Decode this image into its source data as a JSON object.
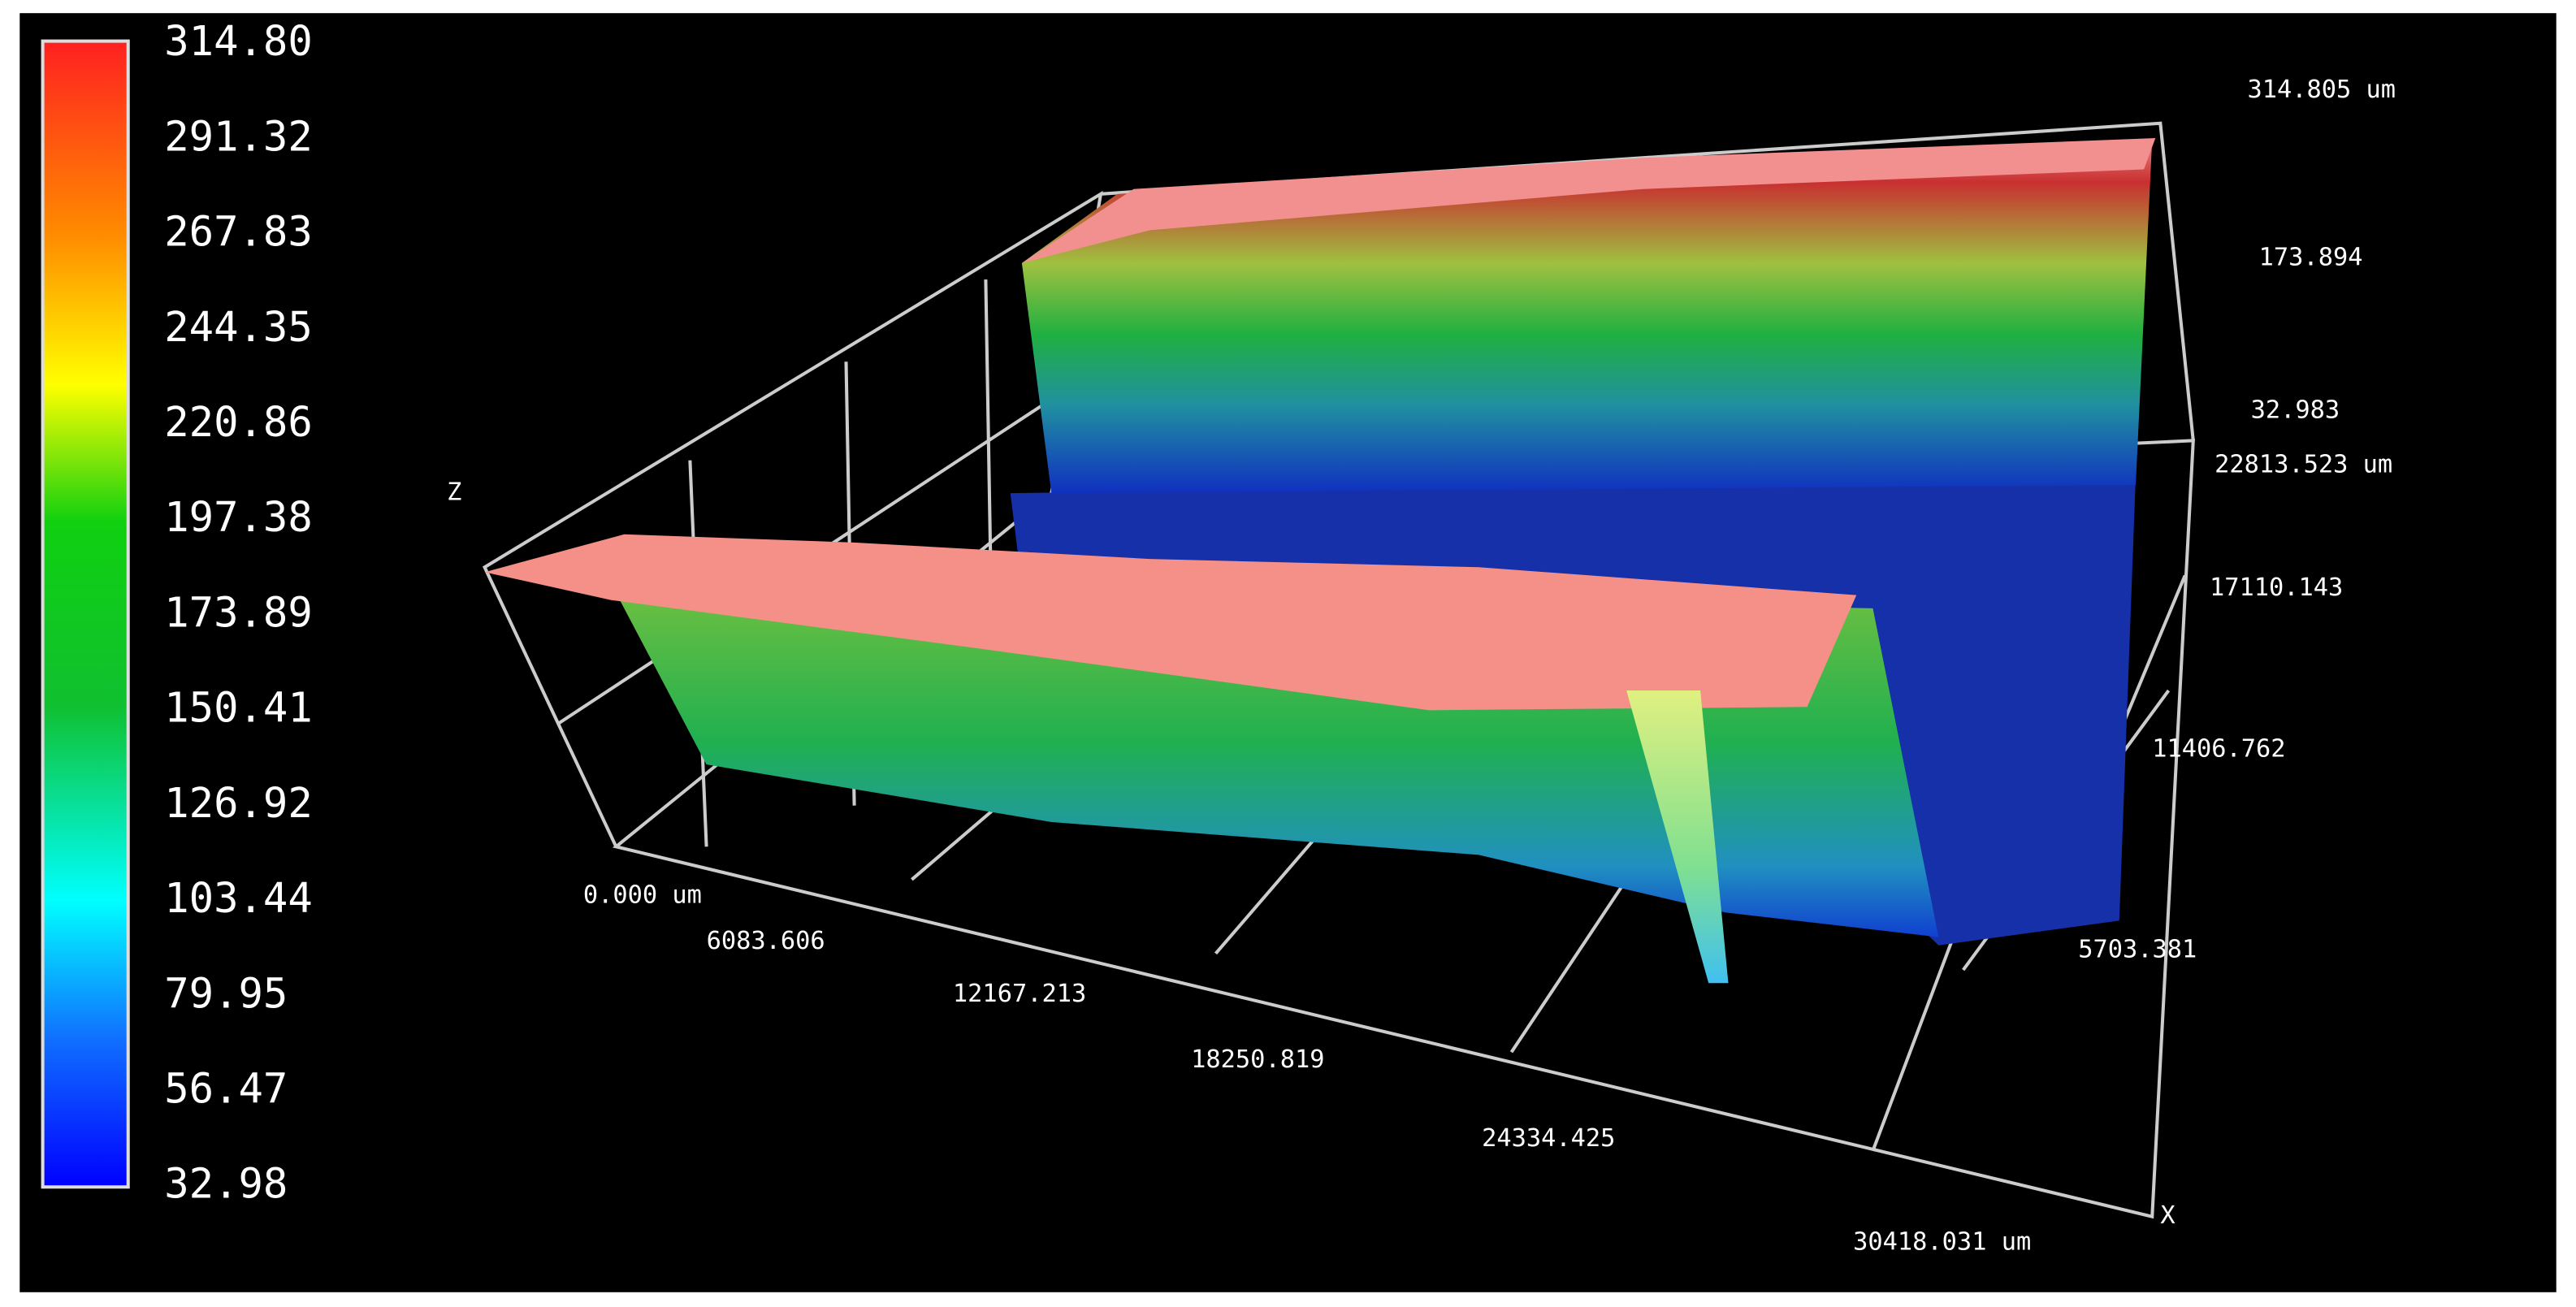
{
  "colorbar": {
    "labels": [
      "314.80",
      "291.32",
      "267.83",
      "244.35",
      "220.86",
      "197.38",
      "173.89",
      "150.41",
      "126.92",
      "103.44",
      "79.95",
      "56.47",
      "32.98"
    ]
  },
  "axes": {
    "z_label": "Z",
    "x_label": "X",
    "x_ticks": [
      "0.000 um",
      "6083.606",
      "12167.213",
      "18250.819",
      "24334.425",
      "30418.031 um"
    ],
    "y_ticks": [
      "22813.523 um",
      "17110.143",
      "11406.762",
      "5703.381"
    ],
    "z_ticks": [
      "314.805 um",
      "173.894",
      "32.983"
    ]
  }
}
